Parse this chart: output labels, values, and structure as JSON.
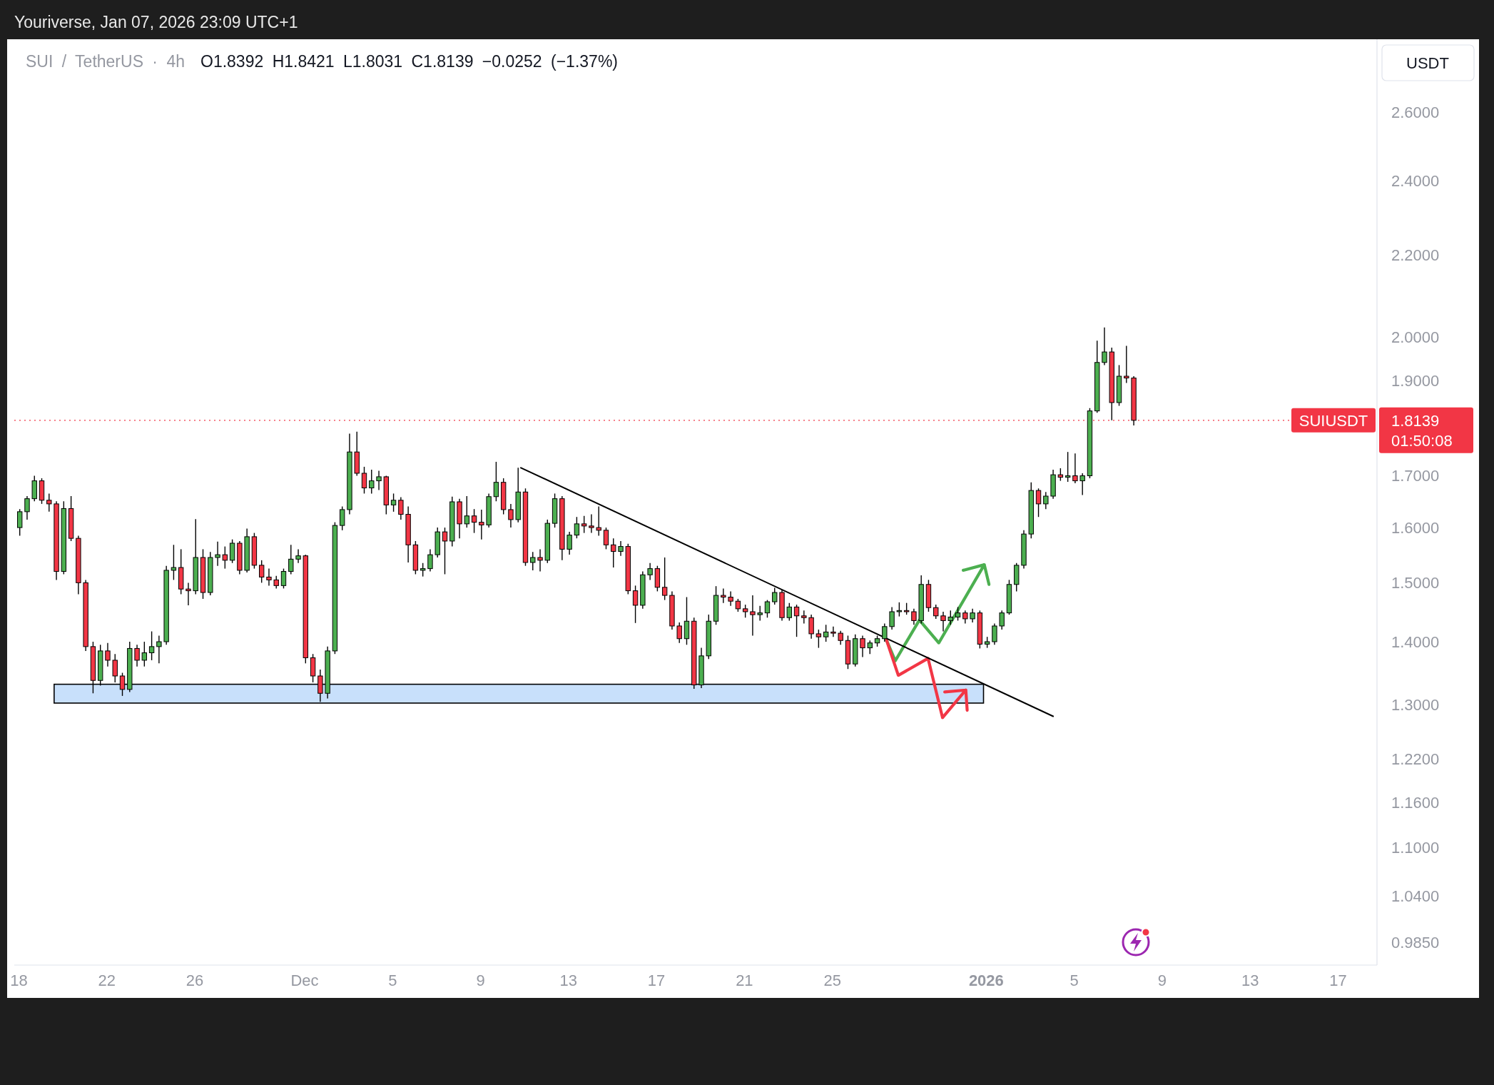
{
  "chart_data": {
    "type": "candlestick",
    "title": "SUI / TetherUS · 4h",
    "subtitle": "O1.8392 H1.8421 L1.8031 C1.8139 −0.0252 (−1.37%)",
    "ylabel": "USDT",
    "annotations": [
      "Youriverse, Jan 07, 2026 23:09 UTC+1",
      "1.8139",
      "01:50:08"
    ],
    "x": [
      "2025-11-18T01:00",
      "2025-11-18T09:00",
      "2025-11-18T17:00",
      "2025-11-19T01:00",
      "2025-11-19T09:00",
      "2025-11-19T17:00",
      "2025-11-20T01:00",
      "2025-11-20T09:00",
      "2025-11-20T17:00",
      "2025-11-21T01:00",
      "2025-11-21T09:00",
      "2025-11-21T17:00",
      "2025-11-22T01:00",
      "2025-11-22T09:00",
      "2025-11-22T17:00",
      "2025-11-23T01:00",
      "2025-11-23T09:00",
      "2025-11-23T17:00",
      "2025-11-24T01:00",
      "2025-11-24T09:00",
      "2025-11-24T17:00",
      "2025-11-25T01:00",
      "2025-11-25T09:00",
      "2025-11-25T17:00",
      "2025-11-26T01:00",
      "2025-11-26T09:00",
      "2025-11-26T17:00",
      "2025-11-27T01:00",
      "2025-11-27T09:00",
      "2025-11-27T17:00",
      "2025-11-28T01:00",
      "2025-11-28T09:00",
      "2025-11-28T17:00",
      "2025-11-29T01:00",
      "2025-11-29T09:00",
      "2025-11-29T17:00",
      "2025-11-30T01:00",
      "2025-11-30T09:00",
      "2025-11-30T17:00",
      "2025-12-01T01:00",
      "2025-12-01T09:00",
      "2025-12-01T17:00",
      "2025-12-02T01:00",
      "2025-12-02T09:00",
      "2025-12-02T17:00",
      "2025-12-03T01:00",
      "2025-12-03T09:00",
      "2025-12-03T17:00",
      "2025-12-04T01:00",
      "2025-12-04T09:00",
      "2025-12-04T17:00",
      "2025-12-05T01:00",
      "2025-12-05T09:00",
      "2025-12-05T17:00",
      "2025-12-06T01:00",
      "2025-12-06T09:00",
      "2025-12-06T17:00",
      "2025-12-07T01:00",
      "2025-12-07T09:00",
      "2025-12-07T17:00",
      "2025-12-08T01:00",
      "2025-12-08T09:00",
      "2025-12-08T17:00",
      "2025-12-09T01:00",
      "2025-12-09T09:00",
      "2025-12-09T17:00",
      "2025-12-10T01:00",
      "2025-12-10T09:00",
      "2025-12-10T17:00",
      "2025-12-11T01:00",
      "2025-12-11T09:00",
      "2025-12-11T17:00",
      "2025-12-12T01:00",
      "2025-12-12T09:00",
      "2025-12-12T17:00",
      "2025-12-13T01:00",
      "2025-12-13T09:00",
      "2025-12-13T17:00",
      "2025-12-14T01:00",
      "2025-12-14T09:00",
      "2025-12-14T17:00",
      "2025-12-15T01:00",
      "2025-12-15T09:00",
      "2025-12-15T17:00",
      "2025-12-16T01:00",
      "2025-12-16T09:00",
      "2025-12-16T17:00",
      "2025-12-17T01:00",
      "2025-12-17T09:00",
      "2025-12-17T17:00",
      "2025-12-18T01:00",
      "2025-12-18T09:00",
      "2025-12-18T17:00",
      "2025-12-19T01:00",
      "2025-12-19T09:00",
      "2025-12-19T17:00",
      "2025-12-20T01:00",
      "2025-12-20T09:00",
      "2025-12-20T17:00",
      "2025-12-21T01:00",
      "2025-12-21T09:00",
      "2025-12-21T17:00",
      "2025-12-22T01:00",
      "2025-12-22T09:00",
      "2025-12-22T17:00",
      "2025-12-23T01:00",
      "2025-12-23T09:00",
      "2025-12-23T17:00",
      "2025-12-24T01:00",
      "2025-12-24T09:00",
      "2025-12-24T17:00",
      "2025-12-25T01:00",
      "2025-12-25T09:00",
      "2025-12-25T17:00",
      "2025-12-26T01:00",
      "2025-12-26T09:00",
      "2025-12-26T17:00",
      "2025-12-27T01:00",
      "2025-12-27T09:00",
      "2025-12-27T17:00",
      "2025-12-28T01:00",
      "2025-12-28T09:00",
      "2025-12-28T17:00",
      "2025-12-29T01:00",
      "2025-12-29T09:00",
      "2025-12-29T17:00",
      "2025-12-30T01:00",
      "2025-12-30T09:00",
      "2025-12-30T17:00",
      "2025-12-31T01:00",
      "2025-12-31T09:00",
      "2025-12-31T17:00",
      "2026-01-01T01:00",
      "2026-01-01T09:00",
      "2026-01-01T17:00",
      "2026-01-02T01:00",
      "2026-01-02T09:00",
      "2026-01-02T17:00",
      "2026-01-03T01:00",
      "2026-01-03T09:00",
      "2026-01-03T17:00",
      "2026-01-04T01:00",
      "2026-01-04T09:00",
      "2026-01-04T17:00",
      "2026-01-05T01:00",
      "2026-01-05T09:00",
      "2026-01-05T17:00",
      "2026-01-06T01:00",
      "2026-01-06T09:00",
      "2026-01-06T17:00",
      "2026-01-07T01:00",
      "2026-01-07T09:00",
      "2026-01-07T17:00"
    ],
    "ohlc": [
      [
        1.6,
        1.635,
        1.585,
        1.63
      ],
      [
        1.63,
        1.66,
        1.615,
        1.655
      ],
      [
        1.655,
        1.7,
        1.65,
        1.69
      ],
      [
        1.69,
        1.695,
        1.645,
        1.652
      ],
      [
        1.652,
        1.665,
        1.63,
        1.645
      ],
      [
        1.645,
        1.65,
        1.505,
        1.52
      ],
      [
        1.52,
        1.65,
        1.515,
        1.636
      ],
      [
        1.636,
        1.66,
        1.575,
        1.58
      ],
      [
        1.58,
        1.585,
        1.48,
        1.5
      ],
      [
        1.5,
        1.505,
        1.385,
        1.392
      ],
      [
        1.392,
        1.4,
        1.318,
        1.338
      ],
      [
        1.338,
        1.395,
        1.33,
        1.385
      ],
      [
        1.385,
        1.398,
        1.36,
        1.37
      ],
      [
        1.37,
        1.38,
        1.335,
        1.345
      ],
      [
        1.345,
        1.35,
        1.314,
        1.324
      ],
      [
        1.324,
        1.4,
        1.32,
        1.389
      ],
      [
        1.389,
        1.395,
        1.36,
        1.37
      ],
      [
        1.37,
        1.4,
        1.36,
        1.382
      ],
      [
        1.382,
        1.417,
        1.37,
        1.392
      ],
      [
        1.392,
        1.41,
        1.365,
        1.4
      ],
      [
        1.4,
        1.53,
        1.395,
        1.522
      ],
      [
        1.522,
        1.568,
        1.505,
        1.527
      ],
      [
        1.527,
        1.56,
        1.48,
        1.489
      ],
      [
        1.489,
        1.5,
        1.461,
        1.486
      ],
      [
        1.486,
        1.616,
        1.48,
        1.545
      ],
      [
        1.545,
        1.56,
        1.472,
        1.483
      ],
      [
        1.483,
        1.555,
        1.478,
        1.545
      ],
      [
        1.545,
        1.574,
        1.53,
        1.55
      ],
      [
        1.55,
        1.565,
        1.525,
        1.54
      ],
      [
        1.54,
        1.578,
        1.535,
        1.571
      ],
      [
        1.571,
        1.575,
        1.515,
        1.522
      ],
      [
        1.522,
        1.598,
        1.518,
        1.583
      ],
      [
        1.583,
        1.59,
        1.525,
        1.531
      ],
      [
        1.531,
        1.54,
        1.5,
        1.51
      ],
      [
        1.51,
        1.525,
        1.495,
        1.505
      ],
      [
        1.505,
        1.512,
        1.49,
        1.495
      ],
      [
        1.495,
        1.525,
        1.49,
        1.52
      ],
      [
        1.52,
        1.568,
        1.515,
        1.542
      ],
      [
        1.542,
        1.56,
        1.535,
        1.548
      ],
      [
        1.548,
        1.55,
        1.365,
        1.374
      ],
      [
        1.374,
        1.38,
        1.335,
        1.345
      ],
      [
        1.345,
        1.355,
        1.305,
        1.318
      ],
      [
        1.318,
        1.392,
        1.31,
        1.385
      ],
      [
        1.385,
        1.61,
        1.38,
        1.604
      ],
      [
        1.604,
        1.64,
        1.595,
        1.634
      ],
      [
        1.634,
        1.786,
        1.625,
        1.748
      ],
      [
        1.748,
        1.79,
        1.7,
        1.705
      ],
      [
        1.705,
        1.718,
        1.665,
        1.676
      ],
      [
        1.676,
        1.712,
        1.665,
        1.69
      ],
      [
        1.69,
        1.71,
        1.672,
        1.698
      ],
      [
        1.698,
        1.7,
        1.625,
        1.643
      ],
      [
        1.643,
        1.665,
        1.63,
        1.652
      ],
      [
        1.652,
        1.658,
        1.615,
        1.625
      ],
      [
        1.625,
        1.64,
        1.536,
        1.568
      ],
      [
        1.568,
        1.575,
        1.515,
        1.522
      ],
      [
        1.522,
        1.535,
        1.511,
        1.525
      ],
      [
        1.525,
        1.56,
        1.52,
        1.55
      ],
      [
        1.55,
        1.6,
        1.545,
        1.592
      ],
      [
        1.592,
        1.6,
        1.515,
        1.575
      ],
      [
        1.575,
        1.659,
        1.565,
        1.649
      ],
      [
        1.649,
        1.655,
        1.58,
        1.607
      ],
      [
        1.607,
        1.66,
        1.6,
        1.622
      ],
      [
        1.622,
        1.635,
        1.59,
        1.61
      ],
      [
        1.61,
        1.634,
        1.578,
        1.605
      ],
      [
        1.605,
        1.665,
        1.6,
        1.659
      ],
      [
        1.659,
        1.728,
        1.65,
        1.687
      ],
      [
        1.687,
        1.695,
        1.625,
        1.634
      ],
      [
        1.634,
        1.645,
        1.6,
        1.615
      ],
      [
        1.615,
        1.716,
        1.61,
        1.668
      ],
      [
        1.668,
        1.675,
        1.53,
        1.536
      ],
      [
        1.536,
        1.555,
        1.522,
        1.545
      ],
      [
        1.545,
        1.56,
        1.52,
        1.54
      ],
      [
        1.54,
        1.615,
        1.535,
        1.608
      ],
      [
        1.608,
        1.665,
        1.6,
        1.655
      ],
      [
        1.655,
        1.66,
        1.54,
        1.56
      ],
      [
        1.56,
        1.592,
        1.55,
        1.586
      ],
      [
        1.586,
        1.62,
        1.58,
        1.607
      ],
      [
        1.607,
        1.622,
        1.59,
        1.603
      ],
      [
        1.603,
        1.625,
        1.59,
        1.6
      ],
      [
        1.6,
        1.64,
        1.585,
        1.595
      ],
      [
        1.595,
        1.6,
        1.56,
        1.568
      ],
      [
        1.568,
        1.58,
        1.527,
        1.556
      ],
      [
        1.556,
        1.575,
        1.548,
        1.565
      ],
      [
        1.565,
        1.57,
        1.48,
        1.486
      ],
      [
        1.486,
        1.495,
        1.431,
        1.461
      ],
      [
        1.461,
        1.52,
        1.455,
        1.514
      ],
      [
        1.514,
        1.535,
        1.505,
        1.525
      ],
      [
        1.525,
        1.53,
        1.485,
        1.492
      ],
      [
        1.492,
        1.545,
        1.47,
        1.478
      ],
      [
        1.478,
        1.485,
        1.42,
        1.426
      ],
      [
        1.426,
        1.432,
        1.398,
        1.405
      ],
      [
        1.405,
        1.475,
        1.395,
        1.434
      ],
      [
        1.434,
        1.44,
        1.325,
        1.331
      ],
      [
        1.331,
        1.39,
        1.326,
        1.377
      ],
      [
        1.377,
        1.445,
        1.372,
        1.434
      ],
      [
        1.434,
        1.494,
        1.428,
        1.478
      ],
      [
        1.478,
        1.49,
        1.465,
        1.475
      ],
      [
        1.475,
        1.485,
        1.46,
        1.468
      ],
      [
        1.468,
        1.472,
        1.45,
        1.455
      ],
      [
        1.455,
        1.462,
        1.44,
        1.45
      ],
      [
        1.45,
        1.478,
        1.41,
        1.445
      ],
      [
        1.445,
        1.46,
        1.435,
        1.448
      ],
      [
        1.448,
        1.47,
        1.44,
        1.467
      ],
      [
        1.467,
        1.491,
        1.462,
        1.483
      ],
      [
        1.483,
        1.488,
        1.435,
        1.44
      ],
      [
        1.44,
        1.465,
        1.435,
        1.458
      ],
      [
        1.458,
        1.462,
        1.408,
        1.443
      ],
      [
        1.443,
        1.452,
        1.43,
        1.44
      ],
      [
        1.44,
        1.445,
        1.405,
        1.413
      ],
      [
        1.413,
        1.42,
        1.39,
        1.408
      ],
      [
        1.408,
        1.428,
        1.4,
        1.416
      ],
      [
        1.416,
        1.425,
        1.408,
        1.414
      ],
      [
        1.414,
        1.418,
        1.395,
        1.402
      ],
      [
        1.402,
        1.41,
        1.356,
        1.364
      ],
      [
        1.364,
        1.412,
        1.36,
        1.405
      ],
      [
        1.405,
        1.41,
        1.375,
        1.39
      ],
      [
        1.39,
        1.402,
        1.38,
        1.398
      ],
      [
        1.398,
        1.41,
        1.392,
        1.405
      ],
      [
        1.405,
        1.43,
        1.4,
        1.425
      ],
      [
        1.425,
        1.458,
        1.42,
        1.45
      ],
      [
        1.45,
        1.466,
        1.442,
        1.452
      ],
      [
        1.452,
        1.465,
        1.445,
        1.45
      ],
      [
        1.45,
        1.455,
        1.428,
        1.435
      ],
      [
        1.435,
        1.513,
        1.43,
        1.497
      ],
      [
        1.497,
        1.505,
        1.45,
        1.457
      ],
      [
        1.457,
        1.462,
        1.438,
        1.443
      ],
      [
        1.443,
        1.45,
        1.417,
        1.435
      ],
      [
        1.435,
        1.452,
        1.428,
        1.441
      ],
      [
        1.441,
        1.458,
        1.435,
        1.448
      ],
      [
        1.448,
        1.452,
        1.43,
        1.438
      ],
      [
        1.438,
        1.455,
        1.432,
        1.448
      ],
      [
        1.448,
        1.452,
        1.389,
        1.396
      ],
      [
        1.396,
        1.408,
        1.39,
        1.4
      ],
      [
        1.4,
        1.43,
        1.395,
        1.426
      ],
      [
        1.426,
        1.452,
        1.42,
        1.448
      ],
      [
        1.448,
        1.505,
        1.445,
        1.497
      ],
      [
        1.497,
        1.535,
        1.485,
        1.531
      ],
      [
        1.531,
        1.595,
        1.525,
        1.588
      ],
      [
        1.588,
        1.687,
        1.58,
        1.671
      ],
      [
        1.671,
        1.675,
        1.62,
        1.645
      ],
      [
        1.645,
        1.668,
        1.635,
        1.66
      ],
      [
        1.66,
        1.712,
        1.655,
        1.702
      ],
      [
        1.702,
        1.715,
        1.69,
        1.697
      ],
      [
        1.697,
        1.748,
        1.688,
        1.7
      ],
      [
        1.7,
        1.745,
        1.685,
        1.69
      ],
      [
        1.69,
        1.705,
        1.662,
        1.7
      ],
      [
        1.7,
        1.84,
        1.695,
        1.834
      ],
      [
        1.834,
        1.991,
        1.83,
        1.941
      ],
      [
        1.941,
        2.022,
        1.935,
        1.965
      ],
      [
        1.965,
        1.975,
        1.814,
        1.852
      ],
      [
        1.852,
        1.935,
        1.845,
        1.91
      ],
      [
        1.91,
        1.979,
        1.895,
        1.906
      ],
      [
        1.906,
        1.91,
        1.803,
        1.8139
      ]
    ],
    "series": [
      {
        "type": "line",
        "x": [
          "2025-12-10T20:00",
          "2026-01-04T01:00"
        ],
        "values": [
          1.716,
          1.283
        ],
        "color": "#000000"
      }
    ],
    "xlim": [
      "2025-11-17T19:00",
      "2026-01-18T18:30"
    ],
    "xticks": [
      {
        "value": "2025-11-18",
        "label": "18"
      },
      {
        "value": "2025-11-22",
        "label": "22"
      },
      {
        "value": "2025-11-26",
        "label": "26"
      },
      {
        "value": "2025-12-01",
        "label": "Dec"
      },
      {
        "value": "2025-12-05",
        "label": "5"
      },
      {
        "value": "2025-12-09",
        "label": "9"
      },
      {
        "value": "2025-12-13",
        "label": "13"
      },
      {
        "value": "2025-12-17",
        "label": "17"
      },
      {
        "value": "2025-12-21",
        "label": "21"
      },
      {
        "value": "2025-12-25",
        "label": "25"
      },
      {
        "value": "2026-01-01",
        "label": "2026"
      },
      {
        "value": "2026-01-05",
        "label": "5"
      },
      {
        "value": "2026-01-09",
        "label": "9"
      },
      {
        "value": "2026-01-13",
        "label": "13"
      },
      {
        "value": "2026-01-17",
        "label": "17"
      }
    ],
    "ylim": [
      0.959,
      2.833
    ],
    "log": true,
    "yticks": [
      {
        "value": 0.985,
        "label": "0.9850"
      },
      {
        "value": 1.04,
        "label": "1.0400"
      },
      {
        "value": 1.1,
        "label": "1.1000"
      },
      {
        "value": 1.16,
        "label": "1.1600"
      },
      {
        "value": 1.22,
        "label": "1.2200"
      },
      {
        "value": 1.3,
        "label": "1.3000"
      },
      {
        "value": 1.4,
        "label": "1.4000"
      },
      {
        "value": 1.5,
        "label": "1.5000"
      },
      {
        "value": 1.6,
        "label": "1.6000"
      },
      {
        "value": 1.7,
        "label": "1.7000"
      },
      {
        "value": 1.9,
        "label": "1.9000"
      },
      {
        "value": 2.0,
        "label": "2.0000"
      },
      {
        "value": 2.2,
        "label": "2.2000"
      },
      {
        "value": 2.4,
        "label": "2.4000"
      },
      {
        "value": 2.6,
        "label": "2.6000"
      }
    ],
    "bands": [
      {
        "axis": "y",
        "from": 1.303,
        "to": 1.332,
        "color": "#c8e0fb"
      }
    ],
    "ref_lines": [
      {
        "axis": "y",
        "value": 1.8139,
        "label": "SUIUSDT",
        "color": "#f23645",
        "line_style": "dotted"
      }
    ]
  }
}
